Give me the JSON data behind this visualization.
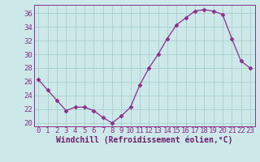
{
  "x": [
    0,
    1,
    2,
    3,
    4,
    5,
    6,
    7,
    8,
    9,
    10,
    11,
    12,
    13,
    14,
    15,
    16,
    17,
    18,
    19,
    20,
    21,
    22,
    23
  ],
  "y": [
    26.3,
    24.8,
    23.3,
    21.8,
    22.3,
    22.3,
    21.8,
    20.8,
    20.0,
    21.0,
    22.3,
    25.5,
    28.0,
    30.0,
    32.3,
    34.3,
    35.3,
    36.3,
    36.5,
    36.3,
    35.8,
    32.3,
    29.0,
    28.0
  ],
  "line_color": "#8B2F8B",
  "marker": "D",
  "bg_color": "#cce8e8",
  "grid_color": "#aacece",
  "xlabel": "Windchill (Refroidissement éolien,°C)",
  "ylim": [
    19.5,
    37.2
  ],
  "xlim": [
    -0.5,
    23.5
  ],
  "yticks": [
    20,
    22,
    24,
    26,
    28,
    30,
    32,
    34,
    36
  ],
  "xticks": [
    0,
    1,
    2,
    3,
    4,
    5,
    6,
    7,
    8,
    9,
    10,
    11,
    12,
    13,
    14,
    15,
    16,
    17,
    18,
    19,
    20,
    21,
    22,
    23
  ],
  "xlabel_color": "#6B1F6B",
  "tick_color": "#8B2F8B",
  "tick_fontsize": 6.5,
  "label_fontsize": 7.0,
  "markersize": 2.5,
  "linewidth": 0.9
}
